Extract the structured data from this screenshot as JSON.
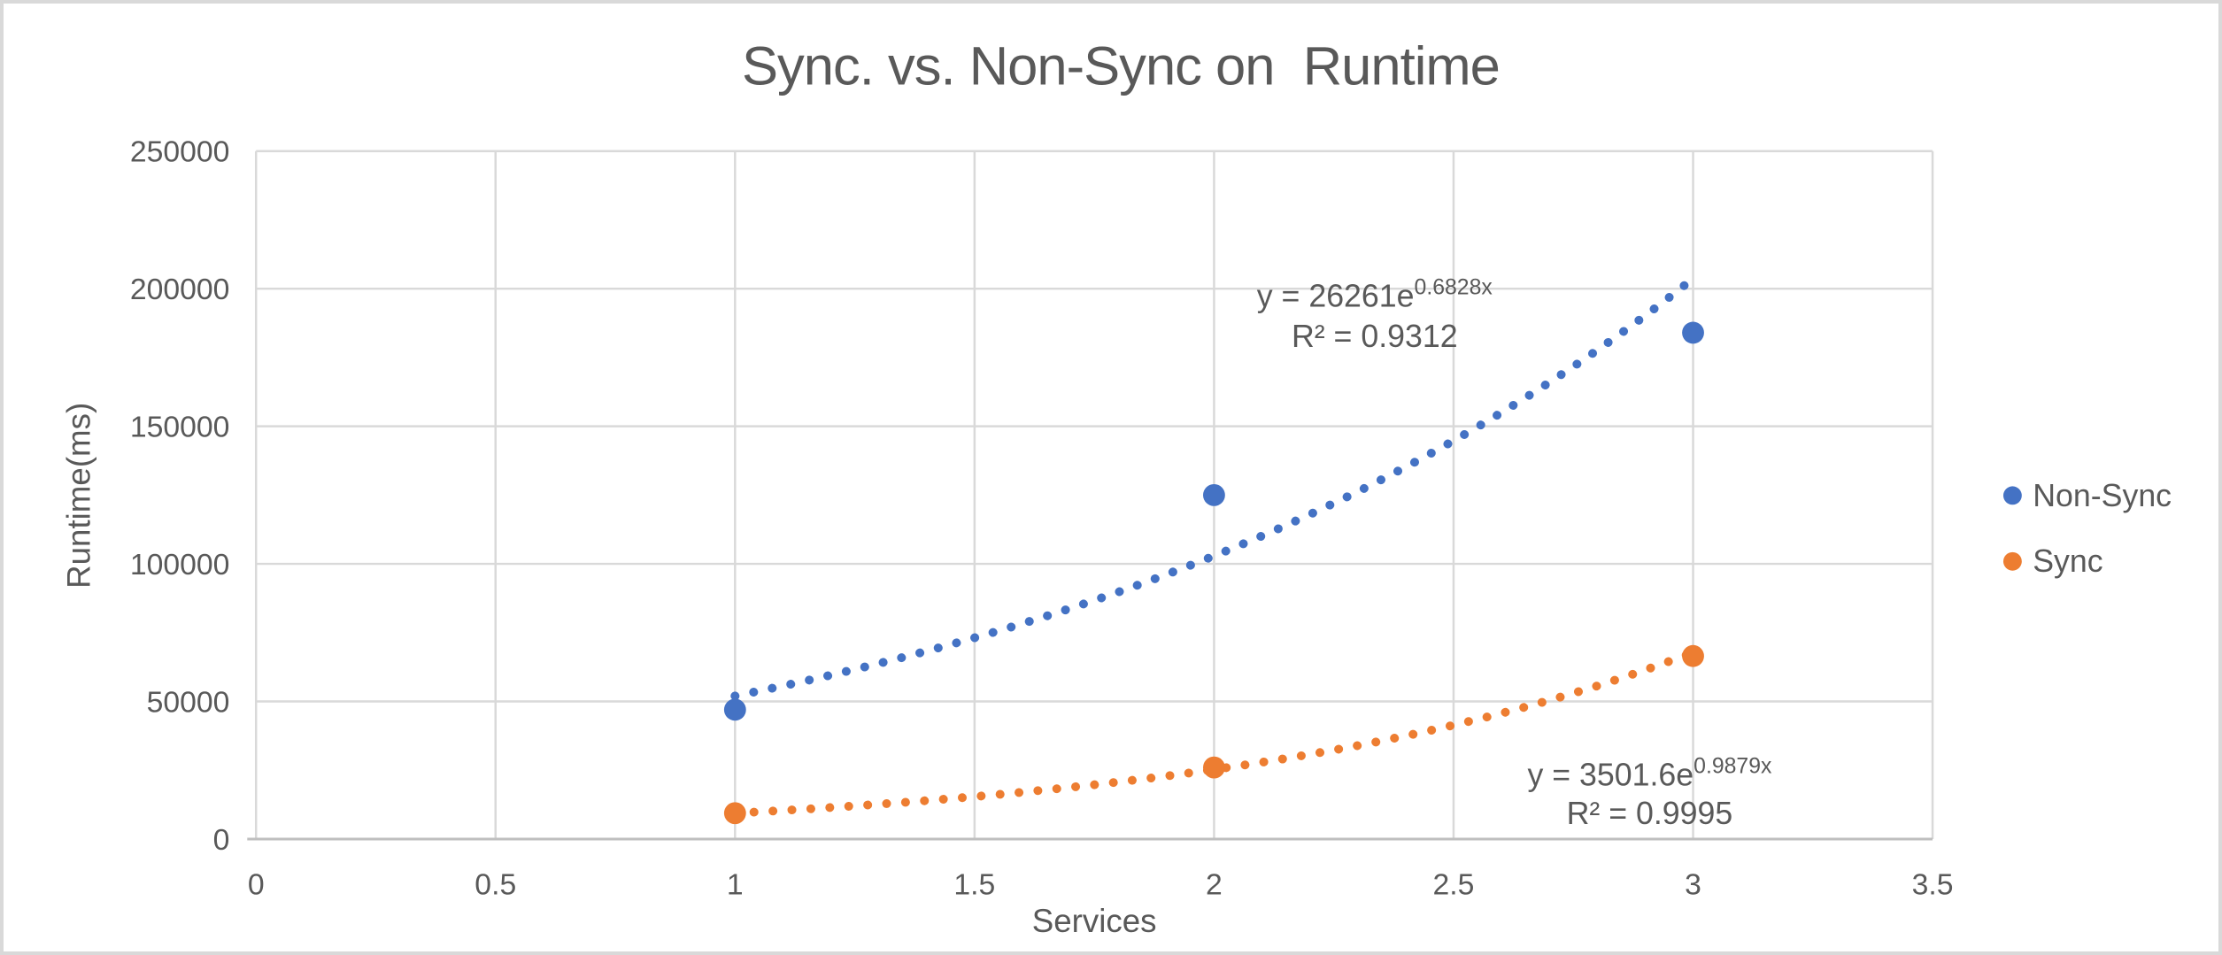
{
  "chart_data": {
    "type": "scatter",
    "title": "Sync. vs. Non-Sync on  Runtime",
    "xlabel": "Services",
    "ylabel": "Runtime(ms)",
    "xlim": [
      0,
      3.5
    ],
    "ylim": [
      0,
      250000
    ],
    "x_ticks": [
      0,
      0.5,
      1,
      1.5,
      2,
      2.5,
      3,
      3.5
    ],
    "x_tick_labels": [
      "0",
      "0.5",
      "1",
      "1.5",
      "2",
      "2.5",
      "3",
      "3.5"
    ],
    "y_ticks": [
      0,
      50000,
      100000,
      150000,
      200000,
      250000
    ],
    "y_tick_labels": [
      "0",
      "50000",
      "100000",
      "150000",
      "200000",
      "250000"
    ],
    "grid": true,
    "legend_position": "right",
    "series": [
      {
        "name": "Non-Sync",
        "color": "#4472C4",
        "points": [
          {
            "x": 1,
            "y": 47000
          },
          {
            "x": 2,
            "y": 125000
          },
          {
            "x": 3,
            "y": 184000
          }
        ],
        "trendline": {
          "type": "exponential",
          "a": 26261,
          "b": 0.6828,
          "range": [
            1,
            3
          ],
          "equation_text": "y = 26261e",
          "equation_exponent": "0.6828x",
          "r2_text": "R² = 0.9312"
        }
      },
      {
        "name": "Sync",
        "color": "#ED7D31",
        "points": [
          {
            "x": 1,
            "y": 9400
          },
          {
            "x": 2,
            "y": 26000
          },
          {
            "x": 3,
            "y": 66500
          }
        ],
        "trendline": {
          "type": "exponential",
          "a": 3501.6,
          "b": 0.9879,
          "range": [
            1,
            3
          ],
          "equation_text": "y = 3501.6e",
          "equation_exponent": "0.9879x",
          "r2_text": "R² = 0.9995"
        }
      }
    ],
    "colors": {
      "text": "#595959",
      "gridline": "#D9D9D9",
      "axis_line": "#BFBFBF",
      "background": "#FFFFFF",
      "frame_border": "#D9D9D9"
    }
  }
}
